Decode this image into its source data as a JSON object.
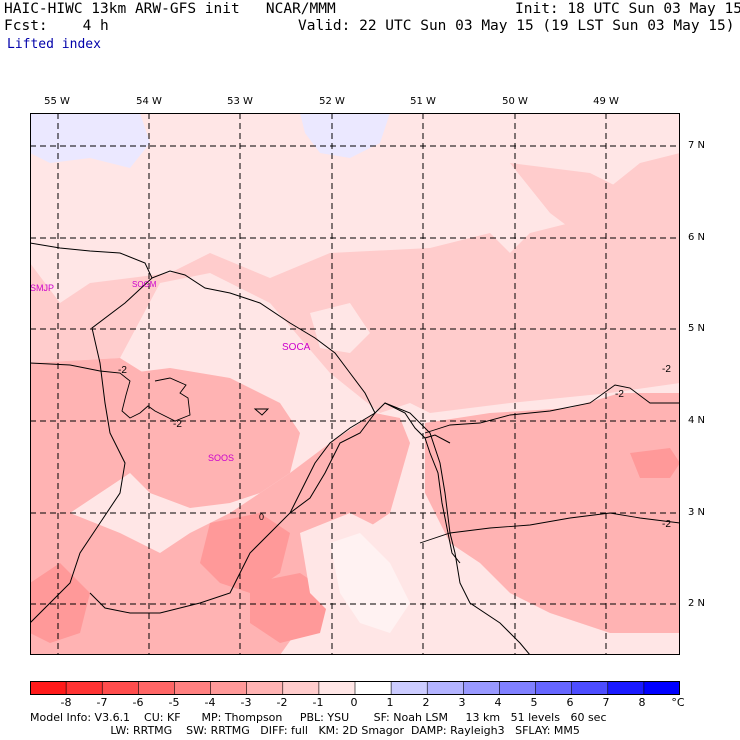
{
  "header": {
    "model_line": "HAIC-HIWC 13km ARW-GFS init   NCAR/MMM",
    "init_line": "Init: 18 UTC Sun 03 May 15",
    "fcst_line": "Fcst:    4 h",
    "valid_line": "Valid: 22 UTC Sun 03 May 15 (19 LST Sun 03 May 15)",
    "field_name": "Lifted index"
  },
  "map": {
    "lon_labels": [
      "55 W",
      "54 W",
      "53 W",
      "52 W",
      "51 W",
      "50 W",
      "49 W"
    ],
    "lat_labels": [
      "7 N",
      "6 N",
      "5 N",
      "4 N",
      "3 N",
      "2 N"
    ],
    "stations": [
      "SMJP",
      "SOCA",
      "SOOS",
      "SOGM"
    ],
    "contour_labels": [
      "-2",
      "-2",
      "-2",
      "-2",
      "0",
      "-2"
    ]
  },
  "colorbar": {
    "labels": [
      "-8",
      "-7",
      "-6",
      "-5",
      "-4",
      "-3",
      "-2",
      "-1",
      "0",
      "1",
      "2",
      "3",
      "4",
      "5",
      "6",
      "7",
      "8"
    ],
    "unit": "°C",
    "colors": [
      "#ff1a1a",
      "#ff3333",
      "#ff4d4d",
      "#ff6666",
      "#ff8080",
      "#ff9999",
      "#ffb3b3",
      "#ffcccc",
      "#ffe6e6",
      "#ffffff",
      "#ccccff",
      "#b3b3ff",
      "#9999ff",
      "#8080ff",
      "#6666ff",
      "#4d4dff",
      "#1a1aff",
      "#0000ff"
    ]
  },
  "footer": {
    "line1": "Model Info: V3.6.1    CU: KF      MP: Thompson     PBL: YSU       SF: Noah LSM     13 km   51 levels   60 sec",
    "line2": "                       LW: RRTMG    SW: RRTMG   DIFF: full   KM: 2D Smagor  DAMP: Rayleigh3   SFLAY: MM5"
  }
}
